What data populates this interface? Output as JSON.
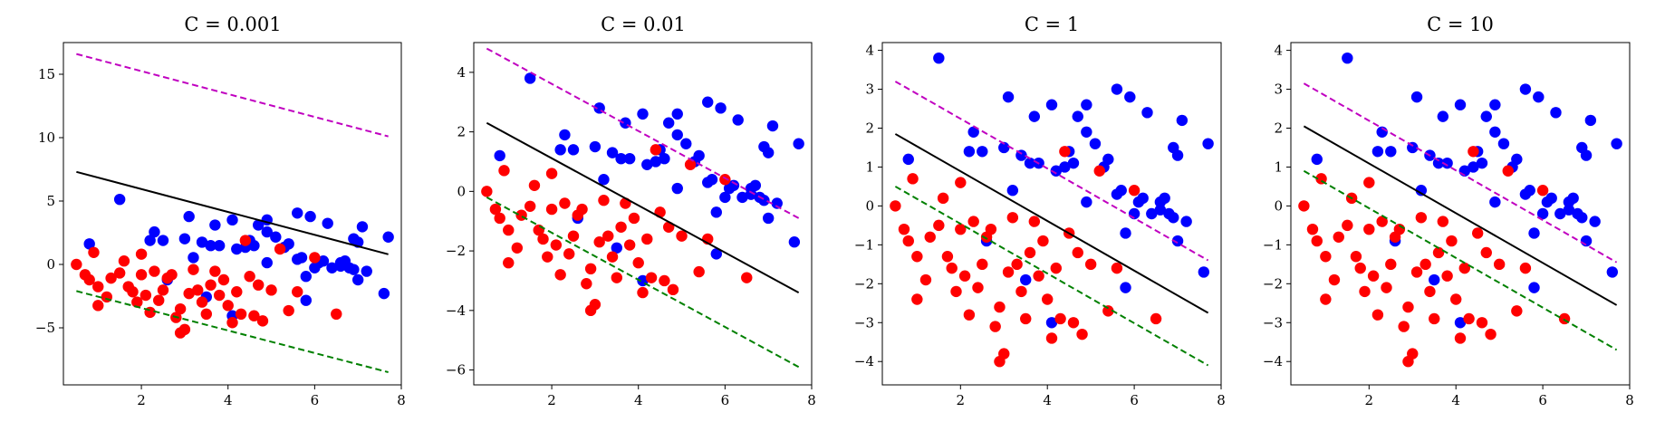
{
  "colors": {
    "class_pos": "#0000ff",
    "class_neg": "#ff0000",
    "decision": "#000000",
    "margin_pos": "#c000c0",
    "margin_neg": "#008000"
  },
  "scatter_data": {
    "blue": [
      [
        0.8,
        1.2
      ],
      [
        1.5,
        3.8
      ],
      [
        2.2,
        1.4
      ],
      [
        2.3,
        1.9
      ],
      [
        2.5,
        1.4
      ],
      [
        3.0,
        1.5
      ],
      [
        3.1,
        2.8
      ],
      [
        3.2,
        0.4
      ],
      [
        3.4,
        1.3
      ],
      [
        3.6,
        1.1
      ],
      [
        3.7,
        2.3
      ],
      [
        3.8,
        1.1
      ],
      [
        4.1,
        2.6
      ],
      [
        4.2,
        0.9
      ],
      [
        4.4,
        1.0
      ],
      [
        4.5,
        1.4
      ],
      [
        4.6,
        1.1
      ],
      [
        4.7,
        2.3
      ],
      [
        4.9,
        2.6
      ],
      [
        4.9,
        1.9
      ],
      [
        4.9,
        0.1
      ],
      [
        5.1,
        1.6
      ],
      [
        5.3,
        1.0
      ],
      [
        5.4,
        1.2
      ],
      [
        5.6,
        3.0
      ],
      [
        5.6,
        0.3
      ],
      [
        5.7,
        0.4
      ],
      [
        5.8,
        -0.7
      ],
      [
        5.9,
        2.8
      ],
      [
        6.0,
        -0.2
      ],
      [
        6.1,
        0.1
      ],
      [
        6.2,
        0.2
      ],
      [
        6.3,
        2.4
      ],
      [
        6.4,
        -0.2
      ],
      [
        6.6,
        0.1
      ],
      [
        6.6,
        -0.1
      ],
      [
        6.8,
        -0.2
      ],
      [
        6.9,
        1.5
      ],
      [
        6.9,
        -0.3
      ],
      [
        7.0,
        1.3
      ],
      [
        7.0,
        -0.9
      ],
      [
        7.1,
        2.2
      ],
      [
        7.2,
        -0.4
      ],
      [
        7.6,
        -1.7
      ],
      [
        7.7,
        1.6
      ],
      [
        5.8,
        -2.1
      ],
      [
        4.1,
        -3.0
      ],
      [
        3.5,
        -1.9
      ],
      [
        2.6,
        -0.9
      ],
      [
        6.7,
        0.2
      ]
    ],
    "red": [
      [
        0.5,
        0.0
      ],
      [
        0.7,
        -0.6
      ],
      [
        0.8,
        -0.9
      ],
      [
        0.9,
        0.7
      ],
      [
        1.0,
        -1.3
      ],
      [
        1.0,
        -2.4
      ],
      [
        1.2,
        -1.9
      ],
      [
        1.3,
        -0.8
      ],
      [
        1.5,
        -0.5
      ],
      [
        1.6,
        0.2
      ],
      [
        1.7,
        -1.3
      ],
      [
        1.8,
        -1.6
      ],
      [
        1.9,
        -2.2
      ],
      [
        2.0,
        0.6
      ],
      [
        2.0,
        -0.6
      ],
      [
        2.1,
        -1.8
      ],
      [
        2.2,
        -2.8
      ],
      [
        2.3,
        -0.4
      ],
      [
        2.4,
        -2.1
      ],
      [
        2.5,
        -1.5
      ],
      [
        2.6,
        -0.8
      ],
      [
        2.7,
        -0.6
      ],
      [
        2.8,
        -3.1
      ],
      [
        2.9,
        -2.6
      ],
      [
        3.0,
        -3.8
      ],
      [
        3.1,
        -1.7
      ],
      [
        3.2,
        -0.3
      ],
      [
        3.3,
        -1.5
      ],
      [
        3.4,
        -2.2
      ],
      [
        3.5,
        -2.9
      ],
      [
        3.6,
        -1.2
      ],
      [
        3.7,
        -0.4
      ],
      [
        3.8,
        -1.8
      ],
      [
        3.9,
        -0.9
      ],
      [
        4.0,
        -2.4
      ],
      [
        4.1,
        -3.4
      ],
      [
        4.2,
        -1.6
      ],
      [
        4.3,
        -2.9
      ],
      [
        4.4,
        1.4
      ],
      [
        4.5,
        -0.7
      ],
      [
        4.6,
        -3.0
      ],
      [
        4.7,
        -1.2
      ],
      [
        4.8,
        -3.3
      ],
      [
        5.0,
        -1.5
      ],
      [
        5.2,
        0.9
      ],
      [
        5.4,
        -2.7
      ],
      [
        5.6,
        -1.6
      ],
      [
        6.0,
        0.4
      ],
      [
        6.5,
        -2.9
      ],
      [
        2.9,
        -4.0
      ]
    ]
  },
  "chart_data": [
    {
      "type": "scatter",
      "title": "C = 0.001",
      "xlim": [
        0.2,
        8.0
      ],
      "ylim": [
        -9.5,
        17.5
      ],
      "xticks": [
        2,
        4,
        6,
        8
      ],
      "yticks": [
        -5,
        0,
        5,
        10,
        15
      ],
      "y_scale": 1.35,
      "lines": [
        {
          "name": "decision",
          "x": [
            0.5,
            7.7
          ],
          "y": [
            7.3,
            0.8
          ]
        },
        {
          "name": "margin_pos",
          "x": [
            0.5,
            7.7
          ],
          "y": [
            16.6,
            10.1
          ]
        },
        {
          "name": "margin_neg",
          "x": [
            0.5,
            7.7
          ],
          "y": [
            -2.1,
            -8.5
          ]
        }
      ]
    },
    {
      "type": "scatter",
      "title": "C = 0.01",
      "xlim": [
        0.2,
        8.0
      ],
      "ylim": [
        -6.5,
        5.0
      ],
      "xticks": [
        2,
        4,
        6,
        8
      ],
      "yticks": [
        -6,
        -4,
        -2,
        0,
        2,
        4
      ],
      "y_scale": 1.0,
      "lines": [
        {
          "name": "decision",
          "x": [
            0.5,
            7.7
          ],
          "y": [
            2.3,
            -3.4
          ]
        },
        {
          "name": "margin_pos",
          "x": [
            0.5,
            7.7
          ],
          "y": [
            4.8,
            -0.9
          ]
        },
        {
          "name": "margin_neg",
          "x": [
            0.5,
            7.7
          ],
          "y": [
            -0.2,
            -5.9
          ]
        }
      ]
    },
    {
      "type": "scatter",
      "title": "C = 1",
      "xlim": [
        0.2,
        8.0
      ],
      "ylim": [
        -4.6,
        4.2
      ],
      "xticks": [
        2,
        4,
        6,
        8
      ],
      "yticks": [
        -4,
        -3,
        -2,
        -1,
        0,
        1,
        2,
        3,
        4
      ],
      "y_scale": 1.0,
      "lines": [
        {
          "name": "decision",
          "x": [
            0.5,
            7.7
          ],
          "y": [
            1.85,
            -2.75
          ]
        },
        {
          "name": "margin_pos",
          "x": [
            0.5,
            7.7
          ],
          "y": [
            3.2,
            -1.4
          ]
        },
        {
          "name": "margin_neg",
          "x": [
            0.5,
            7.7
          ],
          "y": [
            0.5,
            -4.1
          ]
        }
      ]
    },
    {
      "type": "scatter",
      "title": "C = 10",
      "xlim": [
        0.2,
        8.0
      ],
      "ylim": [
        -4.6,
        4.2
      ],
      "xticks": [
        2,
        4,
        6,
        8
      ],
      "yticks": [
        -4,
        -3,
        -2,
        -1,
        0,
        1,
        2,
        3,
        4
      ],
      "y_scale": 1.0,
      "lines": [
        {
          "name": "decision",
          "x": [
            0.5,
            7.7
          ],
          "y": [
            2.05,
            -2.55
          ]
        },
        {
          "name": "margin_pos",
          "x": [
            0.5,
            7.7
          ],
          "y": [
            3.15,
            -1.45
          ]
        },
        {
          "name": "margin_neg",
          "x": [
            0.5,
            7.7
          ],
          "y": [
            0.9,
            -3.7
          ]
        }
      ]
    }
  ]
}
